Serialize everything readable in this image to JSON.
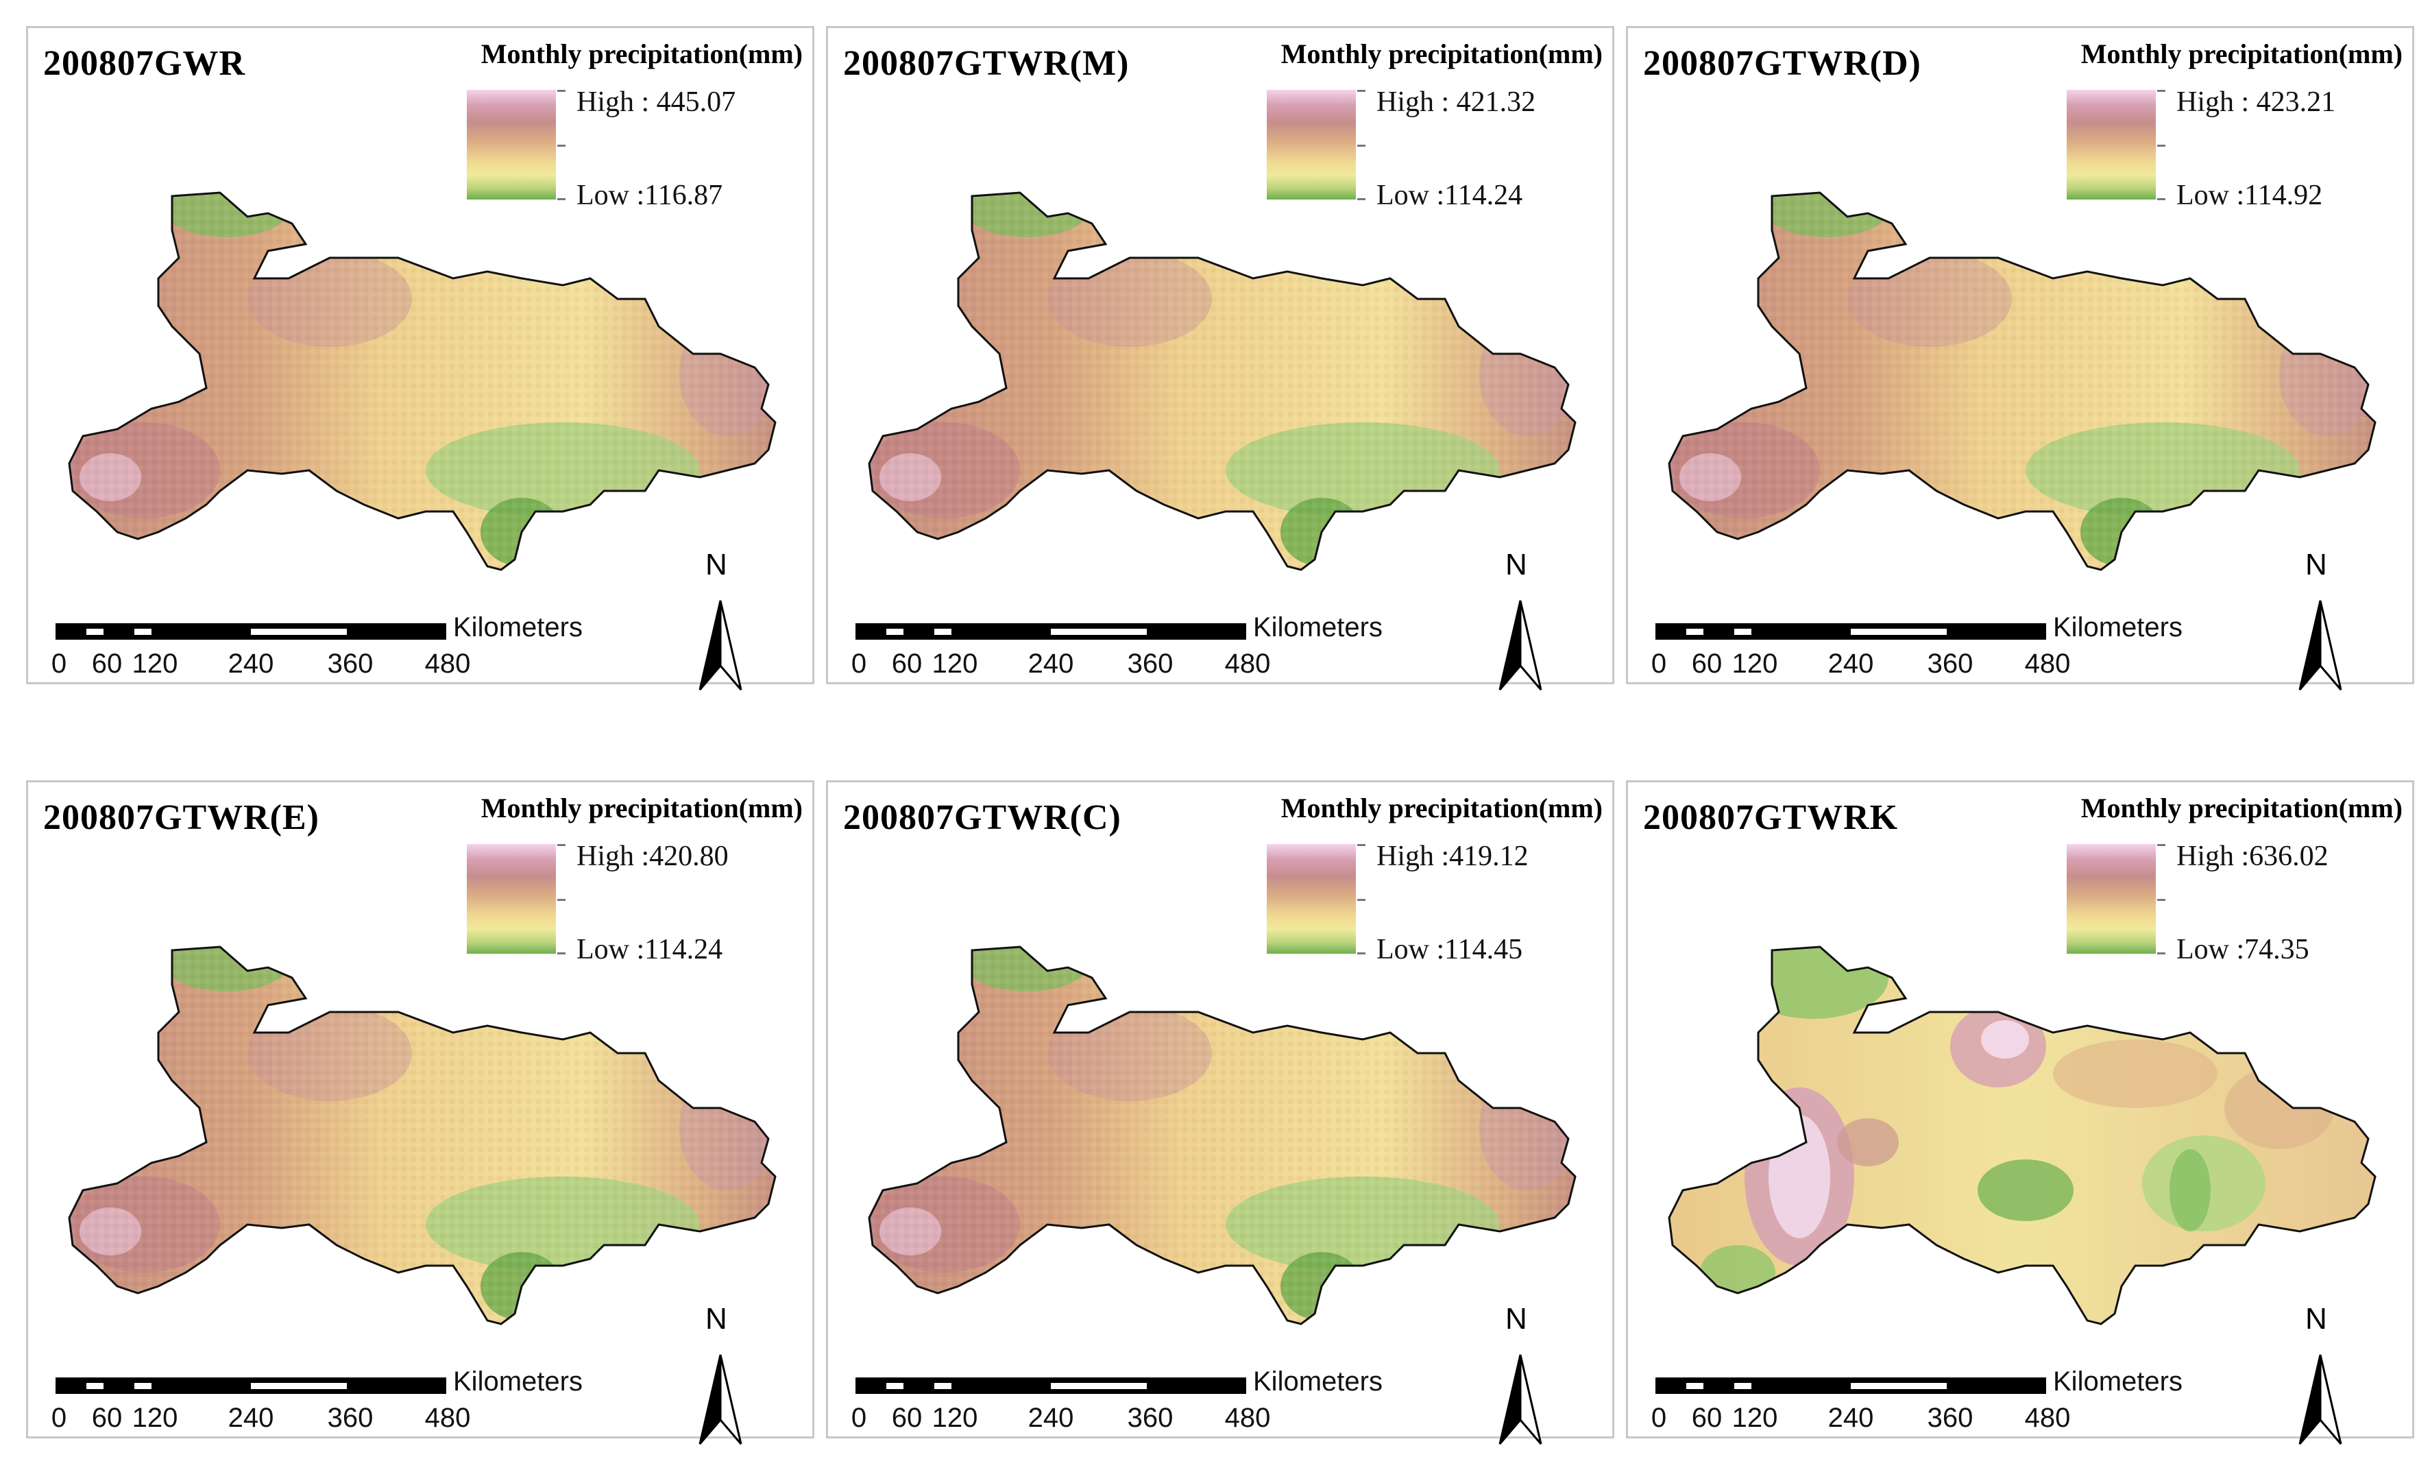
{
  "legend_title": "Monthly precipitation(mm)",
  "scale_unit": "Kilometers",
  "scale_ticks": [
    "0",
    "60",
    "120",
    "240",
    "360",
    "480"
  ],
  "north_label": "N",
  "panels": [
    {
      "title": "200807GWR",
      "high": "High : 445.07",
      "low": "Low :116.87"
    },
    {
      "title": "200807GTWR(M)",
      "high": "High : 421.32",
      "low": "Low :114.24"
    },
    {
      "title": "200807GTWR(D)",
      "high": "High : 423.21",
      "low": "Low :114.92"
    },
    {
      "title": "200807GTWR(E)",
      "high": "High :420.80",
      "low": "Low :114.24"
    },
    {
      "title": "200807GTWR(C)",
      "high": "High :419.12",
      "low": "Low :114.45"
    },
    {
      "title": "200807GTWRK",
      "high": "High :636.02",
      "low": "Low :74.35"
    }
  ]
}
